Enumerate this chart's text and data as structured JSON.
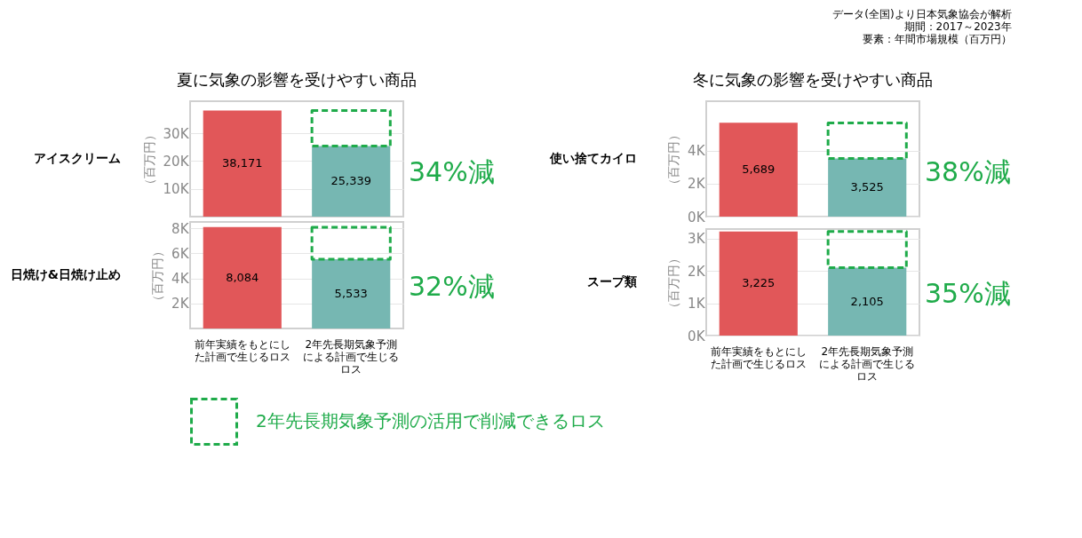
{
  "chart_data": [
    {
      "type": "bar",
      "title": "夏に気象の影響を受けやすい商品",
      "subtitle": "アイスクリーム",
      "ylabel": "（百万円）",
      "stacked": true,
      "categories": [
        "前年実績をもとにした計画で生じるロス",
        "2年先長期気象予測による計画で生じるロス"
      ],
      "series": [
        {
          "colors": [
            "#e15759",
            "#76b7b2"
          ],
          "values": [
            38171,
            25339
          ],
          "value_labels": [
            "38,171",
            "25,339"
          ]
        },
        {
          "name": "2年先長期気象予測の活用で削減できるロス",
          "type": "bar",
          "color": "#1fab4a",
          "line_style": "dashed",
          "values": [
            null,
            12800
          ]
        }
      ],
      "ylim": [
        0,
        41500
      ],
      "yticks": [
        {
          "value": 10000,
          "label": "10K"
        },
        {
          "value": 20000,
          "label": "20K"
        },
        {
          "value": 30000,
          "label": "30K"
        }
      ],
      "grid": "y",
      "tick_labels": "y",
      "legend": "bottom",
      "annotations": [
        "34%減"
      ]
    },
    {
      "type": "bar",
      "title": "冬に気象の影響を受けやすい商品",
      "subtitle": "使い捨てカイロ",
      "ylabel": "（百万円）",
      "stacked": true,
      "categories": [
        "前年実績をもとにした計画で生じるロス",
        "2年先長期気象予測による計画で生じるロス"
      ],
      "series": [
        {
          "colors": [
            "#e15759",
            "#76b7b2"
          ],
          "values": [
            5689,
            3525
          ],
          "value_labels": [
            "5,689",
            "3,525"
          ]
        },
        {
          "type": "bar",
          "color": "#1fab4a",
          "line_style": "dashed",
          "values": [
            null,
            2160
          ]
        }
      ],
      "ylim": [
        0,
        7000
      ],
      "yticks": [
        {
          "value": 0,
          "label": "0K"
        },
        {
          "value": 2000,
          "label": "2K"
        },
        {
          "value": 4000,
          "label": "4K"
        }
      ],
      "grid": "y",
      "tick_labels": "y",
      "annotations": [
        "38%減",
        "データ(全国)より日本気象協会が解析",
        "期間：2017～2023年",
        "要素：年間市場規模（百万円）"
      ]
    },
    {
      "type": "bar",
      "subtitle": "日焼け&日焼け止め",
      "ylabel": "（百万円）",
      "stacked": true,
      "categories": [
        "前年実績をもとにした計画で生じるロス",
        "2年先長期気象予測による計画で生じるロス"
      ],
      "series": [
        {
          "colors": [
            "#e15759",
            "#76b7b2"
          ],
          "values": [
            8084,
            5533
          ],
          "value_labels": [
            "8,084",
            "5,533"
          ]
        },
        {
          "type": "bar",
          "color": "#1fab4a",
          "line_style": "dashed",
          "values": [
            null,
            2550
          ]
        }
      ],
      "ylim": [
        0,
        8500
      ],
      "yticks": [
        {
          "value": 2000,
          "label": "2K"
        },
        {
          "value": 4000,
          "label": "4K"
        },
        {
          "value": 6000,
          "label": "6K"
        },
        {
          "value": 8000,
          "label": "8K"
        }
      ],
      "grid": "y",
      "annotations": [
        "32%減"
      ]
    },
    {
      "type": "bar",
      "subtitle": "スープ類",
      "ylabel": "（百万円）",
      "stacked": true,
      "categories": [
        "前年実績をもとにした計画で生じるロス",
        "2年先長期気象予測による計画で生じるロス"
      ],
      "series": [
        {
          "colors": [
            "#e15759",
            "#76b7b2"
          ],
          "values": [
            3225,
            2105
          ],
          "value_labels": [
            "3,225",
            "2,105"
          ]
        },
        {
          "type": "bar",
          "color": "#1fab4a",
          "line_style": "dashed",
          "values": [
            null,
            1120
          ]
        }
      ],
      "ylim": [
        0,
        3300
      ],
      "yticks": [
        {
          "value": 0,
          "label": "0K"
        },
        {
          "value": 1000,
          "label": "1K"
        },
        {
          "value": 2000,
          "label": "2K"
        },
        {
          "value": 3000,
          "label": "3K"
        }
      ],
      "grid": "y",
      "annotations": [
        "35%減"
      ]
    }
  ]
}
